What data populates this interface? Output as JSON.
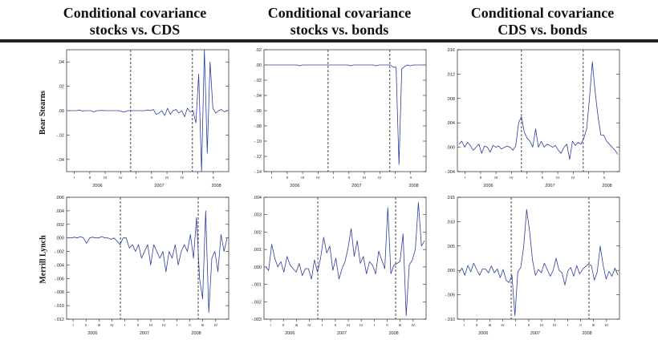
{
  "columns": [
    {
      "line1": "Conditional covariance",
      "line2": "stocks vs. CDS"
    },
    {
      "line1": "Conditional covariance",
      "line2": "stocks vs. bonds"
    },
    {
      "line1": "Conditional covariance",
      "line2": "CDS vs. bonds"
    }
  ],
  "rows": [
    "Bear Stearns",
    "Merrill Lynch"
  ],
  "colors": {
    "series": "#2b3fa0",
    "axis": "#222222",
    "title_rule": "#222222"
  },
  "chart_data": [
    {
      "type": "line",
      "row": "Bear Stearns",
      "column": "stocks vs. CDS",
      "title": "",
      "xlabel": "",
      "ylabel": "",
      "ylim": [
        -0.05,
        0.05
      ],
      "yticks": [
        ".04",
        ".02",
        ".00",
        "-.02",
        "-.04"
      ],
      "ytick_values": [
        0.04,
        0.02,
        0.0,
        -0.02,
        -0.04
      ],
      "quarters": [
        "I",
        "II",
        "III",
        "IV",
        "I",
        "II",
        "III",
        "IV",
        "I",
        "II"
      ],
      "years": [
        "2006",
        "2007",
        "2008"
      ],
      "dashed_lines_quarter_index": [
        4.0,
        8.0
      ],
      "series": [
        {
          "values": [
            0,
            0,
            0,
            0,
            0.0005,
            -0.0003,
            0,
            0,
            0,
            -0.001,
            0,
            0,
            0.0002,
            0,
            0,
            0,
            0,
            0,
            0,
            -0.0008,
            -0.001,
            0,
            0,
            0,
            0,
            0,
            0,
            0,
            0.0005,
            0,
            0.001,
            -0.003,
            -0.002,
            0,
            -0.004,
            0.002,
            -0.003,
            0,
            0.001,
            -0.002,
            0,
            -0.005,
            0.002,
            -0.001,
            0,
            -0.01,
            0.03,
            -0.05,
            0.05,
            -0.035,
            0.04,
            0.002,
            -0.002,
            0,
            0.001,
            -0.001,
            0
          ]
        }
      ]
    },
    {
      "type": "line",
      "row": "Bear Stearns",
      "column": "stocks vs. bonds",
      "title": "",
      "xlabel": "",
      "ylabel": "",
      "ylim": [
        -0.14,
        0.02
      ],
      "yticks": [
        ".02",
        ".00",
        "-.02",
        "-.04",
        "-.06",
        "-.08",
        "-.10",
        "-.12",
        "-.14"
      ],
      "ytick_values": [
        0.02,
        0.0,
        -0.02,
        -0.04,
        -0.06,
        -0.08,
        -0.1,
        -0.12,
        -0.14
      ],
      "quarters": [
        "I",
        "II",
        "III",
        "IV",
        "I",
        "II",
        "III",
        "IV",
        "I",
        "II"
      ],
      "years": [
        "2006",
        "2007",
        "2008"
      ],
      "dashed_lines_quarter_index": [
        4.0,
        8.0
      ],
      "series": [
        {
          "values": [
            0,
            0,
            0,
            0,
            0,
            0,
            0,
            0,
            0,
            0,
            0,
            0,
            -0.001,
            0,
            0,
            0,
            0,
            0,
            0,
            0,
            0,
            0,
            0,
            0,
            0,
            0,
            0,
            0,
            0,
            0,
            -0.001,
            0,
            0,
            0,
            0,
            0,
            0,
            0,
            0,
            -0.001,
            0,
            0,
            0,
            0,
            0,
            -0.003,
            -0.003,
            -0.131,
            -0.005,
            -0.002,
            0,
            -0.001,
            0,
            0,
            0,
            0,
            0
          ]
        }
      ]
    },
    {
      "type": "line",
      "row": "Bear Stearns",
      "column": "CDS vs. bonds",
      "title": "",
      "xlabel": "",
      "ylabel": "",
      "ylim": [
        -0.004,
        0.016
      ],
      "yticks": [
        ".016",
        ".012",
        ".008",
        ".004",
        ".000",
        "-.004"
      ],
      "ytick_values": [
        0.016,
        0.012,
        0.008,
        0.004,
        0.0,
        -0.004
      ],
      "quarters": [
        "I",
        "II",
        "III",
        "IV",
        "I",
        "II",
        "III",
        "IV",
        "I",
        "II"
      ],
      "years": [
        "2006",
        "2007",
        "2008"
      ],
      "dashed_lines_quarter_index": [
        4.0,
        8.0
      ],
      "series": [
        {
          "values": [
            0.0005,
            0.001,
            0,
            0.0008,
            0.0003,
            -0.0005,
            0,
            0.0005,
            -0.001,
            0.0002,
            0,
            -0.0008,
            0.0003,
            0,
            0.0002,
            -0.0003,
            0,
            0.0002,
            0,
            -0.0005,
            0.0002,
            0.004,
            0.005,
            0.0025,
            0.0015,
            0.001,
            0,
            0.003,
            0,
            0.001,
            0,
            0.0005,
            0.0003,
            0,
            0.0003,
            -0.0005,
            -0.001,
            0,
            0.0005,
            -0.002,
            0.001,
            0.0003,
            0.0008,
            0.0005,
            0.0015,
            0.003,
            0.008,
            0.014,
            0.009,
            0.005,
            0.002,
            0.002,
            0.001,
            0.0005,
            0,
            -0.0005,
            -0.0012
          ]
        }
      ]
    },
    {
      "type": "line",
      "row": "Merrill Lynch",
      "column": "stocks vs. CDS",
      "title": "",
      "xlabel": "",
      "ylabel": "",
      "ylim": [
        -0.012,
        0.006
      ],
      "yticks": [
        ".006",
        ".004",
        ".002",
        ".000",
        "-.002",
        "-.004",
        "-.006",
        "-.008",
        "-.010",
        "-.012"
      ],
      "ytick_values": [
        0.006,
        0.004,
        0.002,
        0.0,
        -0.002,
        -0.004,
        -0.006,
        -0.008,
        -0.01,
        -0.012
      ],
      "quarters": [
        "I",
        "II",
        "III",
        "IV",
        "I",
        "II",
        "III",
        "IV",
        "I",
        "II",
        "III",
        "IV"
      ],
      "years": [
        "2006",
        "2007",
        "2008"
      ],
      "dashed_lines_quarter_index": [
        4.0,
        10.0
      ],
      "series": [
        {
          "values": [
            0,
            0,
            0.0001,
            0,
            0.0002,
            0,
            -0.0008,
            0,
            0.0001,
            0,
            0,
            0.0002,
            0,
            0,
            -0.0002,
            0,
            -0.0005,
            -0.001,
            0,
            0,
            -0.0015,
            -0.001,
            -0.002,
            -0.001,
            -0.003,
            -0.002,
            -0.001,
            -0.004,
            -0.001,
            -0.002,
            -0.003,
            -0.002,
            -0.005,
            -0.002,
            -0.003,
            -0.001,
            -0.004,
            -0.002,
            -0.001,
            -0.002,
            0.0005,
            -0.003,
            0.003,
            -0.006,
            -0.009,
            0.004,
            -0.011,
            -0.003,
            -0.002,
            -0.005,
            0.0005,
            -0.002,
            0
          ]
        }
      ]
    },
    {
      "type": "line",
      "row": "Merrill Lynch",
      "column": "stocks vs. bonds",
      "title": "",
      "xlabel": "",
      "ylabel": "",
      "ylim": [
        -0.003,
        0.004
      ],
      "yticks": [
        ".004",
        ".003",
        ".002",
        ".001",
        ".000",
        "-.001",
        "-.002",
        "-.003"
      ],
      "ytick_values": [
        0.004,
        0.003,
        0.002,
        0.001,
        0.0,
        -0.001,
        -0.002,
        -0.003
      ],
      "quarters": [
        "I",
        "II",
        "III",
        "IV",
        "I",
        "II",
        "III",
        "IV",
        "I",
        "II",
        "III",
        "IV"
      ],
      "years": [
        "2006",
        "2007",
        "2008"
      ],
      "dashed_lines_quarter_index": [
        4.0,
        10.0
      ],
      "series": [
        {
          "values": [
            0,
            -0.0002,
            0.0013,
            0.0005,
            0,
            0.0003,
            -0.0003,
            0.0006,
            0.0001,
            -0.0001,
            -0.0003,
            0.0002,
            -0.0005,
            -0.0001,
            -0.0001,
            -0.0007,
            0.0004,
            -0.0003,
            0.0005,
            0.0017,
            0.0008,
            0.0012,
            -0.0002,
            0.0005,
            -0.0007,
            -0.0001,
            0.0003,
            0.0011,
            0.0022,
            0.0006,
            0.0015,
            0.0002,
            0.0006,
            -0.0004,
            0.0003,
            0.0001,
            -0.0004,
            0.0009,
            0.0004,
            -0.0001,
            0.0034,
            -0.0004,
            0.0001,
            0.0002,
            0.0003,
            0.0019,
            -0.0028,
            0.0001,
            0.0004,
            0.001,
            0.0037,
            0.0012,
            0.0015
          ]
        }
      ]
    },
    {
      "type": "line",
      "row": "Merrill Lynch",
      "column": "CDS vs. bonds",
      "title": "",
      "xlabel": "",
      "ylabel": "",
      "ylim": [
        -0.01,
        0.015
      ],
      "yticks": [
        ".015",
        ".010",
        ".005",
        ".000",
        "-.005",
        "-.010"
      ],
      "ytick_values": [
        0.015,
        0.01,
        0.005,
        0.0,
        -0.005,
        -0.01
      ],
      "quarters": [
        "I",
        "II",
        "III",
        "IV",
        "I",
        "II",
        "III",
        "IV",
        "I",
        "II",
        "III",
        "IV"
      ],
      "years": [
        "2006",
        "2007",
        "2008"
      ],
      "dashed_lines_quarter_index": [
        4.0,
        10.0
      ],
      "series": [
        {
          "values": [
            -0.0005,
            0.0005,
            -0.001,
            0.001,
            -0.0003,
            0.0015,
            0.0002,
            -0.001,
            0.0003,
            0.0003,
            -0.0005,
            0.0009,
            -0.0005,
            0.0003,
            -0.0015,
            0.0002,
            -0.002,
            -0.0025,
            -0.001,
            -0.0093,
            -0.0003,
            0.0006,
            0.005,
            0.0125,
            0.008,
            0.002,
            -0.001,
            0.0002,
            -0.0005,
            0.0015,
            0.0002,
            -0.0012,
            0,
            0.0025,
            0,
            -0.0005,
            -0.003,
            -0.0001,
            0.0006,
            -0.0012,
            0.001,
            -0.0007,
            0.0002,
            0.0008,
            0.0013,
            0.001,
            -0.002,
            -0.0003,
            0.005,
            0.001,
            -0.0018,
            -0.0002,
            -0.0012,
            0.0005,
            -0.001
          ]
        }
      ]
    }
  ]
}
